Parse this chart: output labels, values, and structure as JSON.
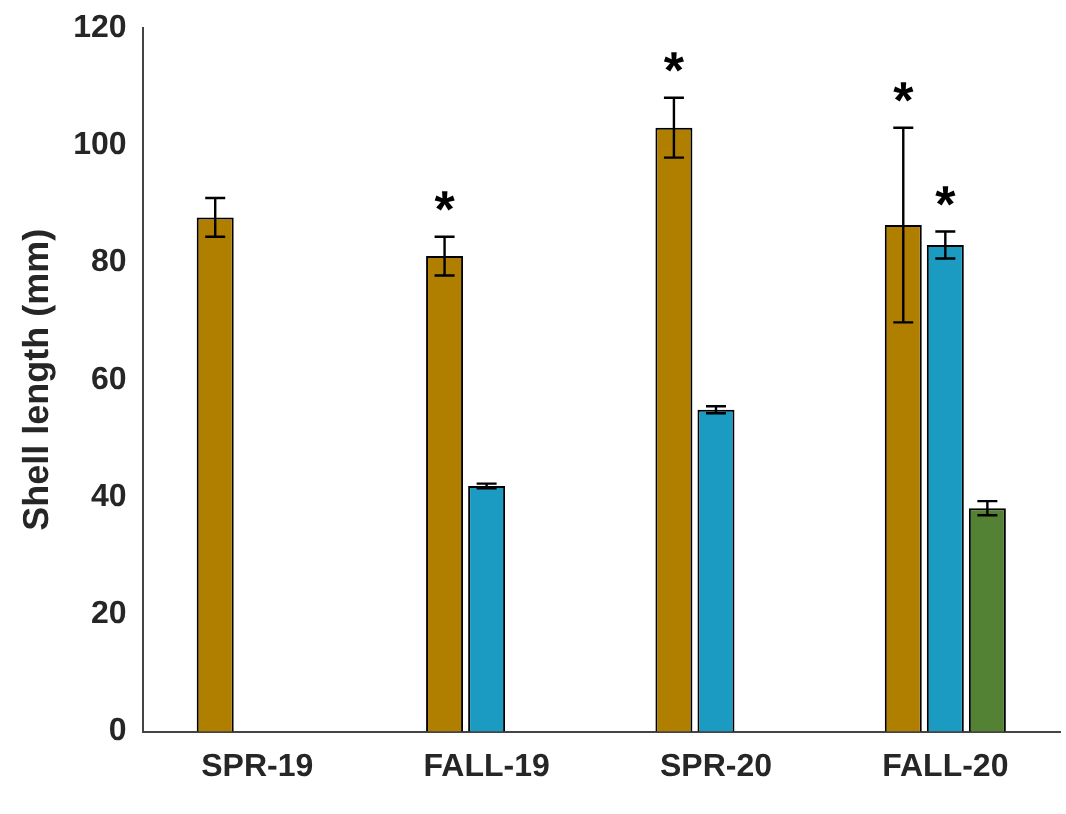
{
  "chart_data": {
    "type": "bar",
    "ylabel": "Shell length (mm)",
    "categories": [
      "SPR-19",
      "FALL-19",
      "SPR-20",
      "FALL-20"
    ],
    "series": [
      {
        "color": "#b07f00",
        "values": [
          87.7,
          81.1,
          103.0,
          86.4
        ],
        "errors": [
          3.3,
          3.3,
          5.1,
          16.6
        ]
      },
      {
        "color": "#1b9bc2",
        "values": [
          null,
          41.9,
          54.9,
          83.0
        ],
        "errors": [
          null,
          0.4,
          0.6,
          2.3
        ]
      },
      {
        "color": "#548235",
        "values": [
          null,
          null,
          null,
          38.1
        ],
        "errors": [
          null,
          null,
          null,
          1.2
        ]
      }
    ],
    "ylim": [
      0,
      120
    ],
    "yticks": [
      0,
      20,
      40,
      60,
      80,
      100,
      120
    ],
    "annotations": [
      "*",
      "*",
      "*",
      "*"
    ],
    "grid": false,
    "legend": false
  }
}
